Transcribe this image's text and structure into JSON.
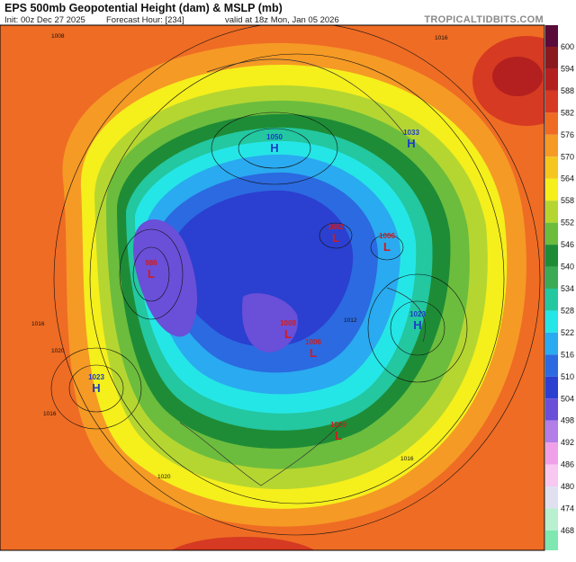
{
  "header": {
    "title": "EPS 500mb Geopotential Height (dam) & MSLP (mb)",
    "init": "Init: 00z Dec 27 2025",
    "forecast_hour": "Forecast Hour: [234]",
    "valid": "valid at 18z Mon, Jan 05 2026",
    "source": "TROPICALTIDBITS.COM"
  },
  "colorbar": {
    "levels": [
      600,
      594,
      588,
      582,
      576,
      570,
      564,
      558,
      552,
      546,
      540,
      534,
      528,
      522,
      516,
      510,
      504,
      498,
      492,
      486,
      480,
      474,
      468
    ]
  },
  "centers": [
    {
      "letter": "H",
      "value": 1023
    },
    {
      "letter": "L",
      "value": 986
    },
    {
      "letter": "H",
      "value": 1050
    },
    {
      "letter": "H",
      "value": 1033
    },
    {
      "letter": "L",
      "value": 1002
    },
    {
      "letter": "L",
      "value": 1006
    },
    {
      "letter": "H",
      "value": 1023
    },
    {
      "letter": "L",
      "value": 1008
    },
    {
      "letter": "L",
      "value": 1006
    },
    {
      "letter": "L",
      "value": 1009
    }
  ],
  "isobar_labels": [
    1008,
    1016,
    1016,
    1020,
    1016,
    1020,
    1016,
    1012
  ]
}
